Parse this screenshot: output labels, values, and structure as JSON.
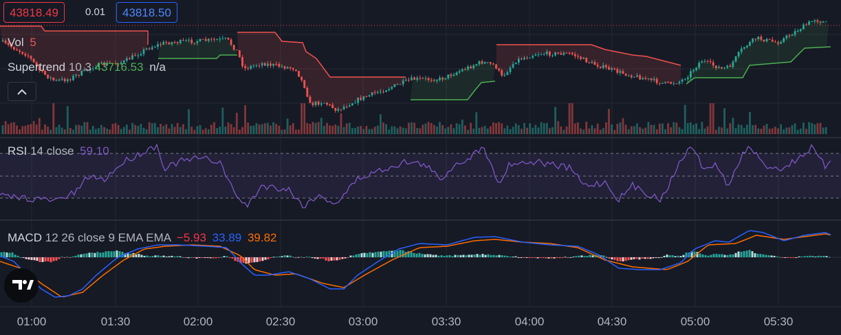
{
  "quote": {
    "bid": "43818.49",
    "spread": "0.01",
    "ask": "43818.50"
  },
  "legend": {
    "vol": {
      "name": "Vol",
      "value": "5"
    },
    "supertrend": {
      "name": "Supertrend",
      "params": "10 3",
      "value": "43716.53",
      "extra": "n/a"
    },
    "rsi": {
      "name": "RSI",
      "params": "14 close",
      "value": "59.10"
    },
    "macd": {
      "name": "MACD",
      "params": "12 26 close 9 EMA EMA",
      "histogram": "−5.93",
      "macd": "33.89",
      "signal": "39.82"
    }
  },
  "time_axis": [
    "01:00",
    "01:30",
    "02:00",
    "02:30",
    "03:00",
    "03:30",
    "04:00",
    "04:30",
    "05:00",
    "05:30"
  ],
  "icons": {
    "collapse": "chevron-up-icon",
    "logo": "tradingview-logo-icon"
  },
  "colors": {
    "background": "#161a25",
    "up": "#26a69a",
    "down": "#ef5350",
    "supertrend_up": "#4caf50",
    "supertrend_down": "#f0524e",
    "rsi_line": "#7e57c2",
    "macd_line": "#2962ff",
    "signal_line": "#ff6d00",
    "bid": "#f23645",
    "ask": "#2962ff"
  },
  "chart_data": {
    "type": "candlestick",
    "x_labels": [
      "01:00",
      "01:30",
      "02:00",
      "02:30",
      "03:00",
      "03:30",
      "04:00",
      "04:30",
      "05:00",
      "05:30"
    ],
    "close_path": [
      43760,
      43640,
      43690,
      43740,
      43720,
      43640,
      43520,
      43560,
      43610,
      43700,
      43690,
      43740,
      43735,
      43720,
      43660,
      43690,
      43740,
      43818
    ],
    "last_price": 43818.49,
    "supertrend_last": 43716.53,
    "rsi": {
      "period": 14,
      "last": 59.1,
      "upper": 70,
      "lower": 30
    },
    "macd": {
      "fast": 12,
      "slow": 26,
      "signal": 9,
      "histogram_last": -5.93,
      "macd_last": 33.89,
      "signal_last": 39.82
    }
  }
}
